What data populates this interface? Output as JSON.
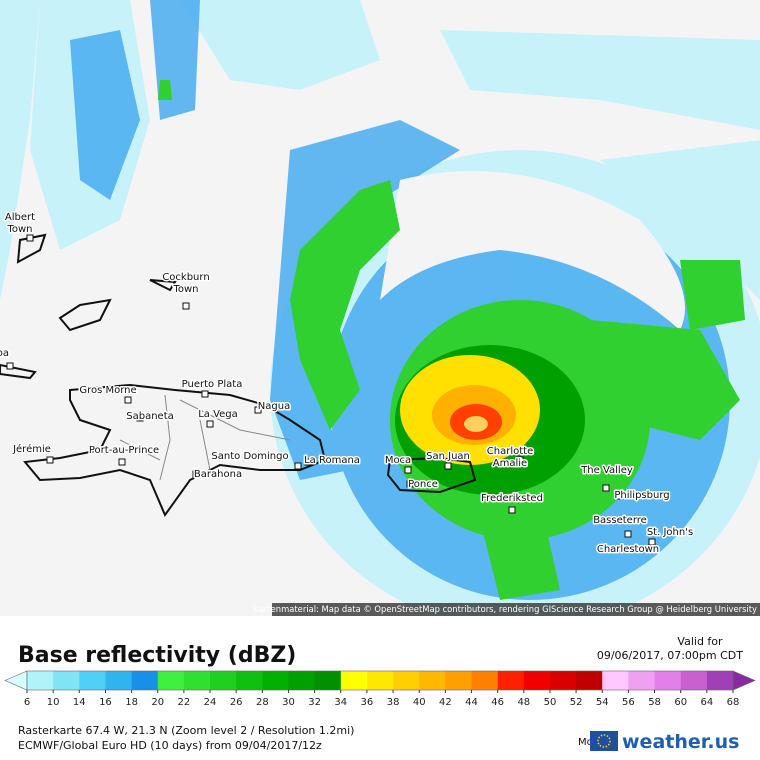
{
  "map": {
    "places": [
      {
        "lines": [
          "Albert",
          "Town"
        ]
      },
      {
        "lines": [
          "Cockburn",
          "Town"
        ]
      },
      {
        "lines": [
          "aracoa"
        ]
      },
      {
        "lines": [
          "Gros Morne"
        ]
      },
      {
        "lines": [
          "Puerto Plata"
        ]
      },
      {
        "lines": [
          "Sabaneta"
        ]
      },
      {
        "lines": [
          "La Vega"
        ]
      },
      {
        "lines": [
          "Nagua"
        ]
      },
      {
        "lines": [
          "Jérémie"
        ]
      },
      {
        "lines": [
          "Port-au-Prince"
        ]
      },
      {
        "lines": [
          "Santo Domingo"
        ]
      },
      {
        "lines": [
          "La Romana"
        ]
      },
      {
        "lines": [
          "Barahona"
        ]
      },
      {
        "lines": [
          "Moca"
        ]
      },
      {
        "lines": [
          "San Juan"
        ]
      },
      {
        "lines": [
          "Charlotte",
          "Amalie"
        ]
      },
      {
        "lines": [
          "Ponce"
        ]
      },
      {
        "lines": [
          "Frederiksted"
        ]
      },
      {
        "lines": [
          "The Valley"
        ]
      },
      {
        "lines": [
          "Philipsburg"
        ]
      },
      {
        "lines": [
          "Basseterre"
        ]
      },
      {
        "lines": [
          "St. John's"
        ]
      },
      {
        "lines": [
          "Charlestown"
        ]
      }
    ],
    "attribution": "Kartenmaterial: Map data © OpenStreetMap contributors, rendering GIScience Research Group @ Heidelberg University"
  },
  "legend": {
    "title": "Base reflectivity (dBZ)",
    "valid_label": "Valid for",
    "valid_time": "09/06/2017, 07:00pm CDT",
    "ticks": [
      6,
      10,
      14,
      16,
      18,
      20,
      22,
      24,
      26,
      28,
      30,
      32,
      34,
      36,
      38,
      40,
      42,
      44,
      46,
      48,
      50,
      52,
      54,
      56,
      58,
      60,
      64,
      68
    ],
    "colors": [
      "#d8ffff",
      "#b0f4fa",
      "#80e4f4",
      "#50d0f4",
      "#30b4f0",
      "#1890e8",
      "#40f040",
      "#30e030",
      "#20d020",
      "#10c010",
      "#00b000",
      "#00a000",
      "#009000",
      "#ffff00",
      "#ffe800",
      "#ffd000",
      "#ffb800",
      "#ffa000",
      "#ff8000",
      "#ff2000",
      "#f00000",
      "#d80000",
      "#c00000",
      "#ffc8ff",
      "#f0a0f0",
      "#e080e8",
      "#c860d0",
      "#a040b8",
      "#8a2aa0"
    ]
  },
  "footer": {
    "raster": "Rasterkarte 67.4 W, 21.3 N (Zoom level 2 / Resolution 1.2mi)",
    "model": "ECMWF/Global Euro HD (10 days) from 09/04/2017/12z",
    "model_label": "Model:",
    "brand": "weather.us"
  }
}
